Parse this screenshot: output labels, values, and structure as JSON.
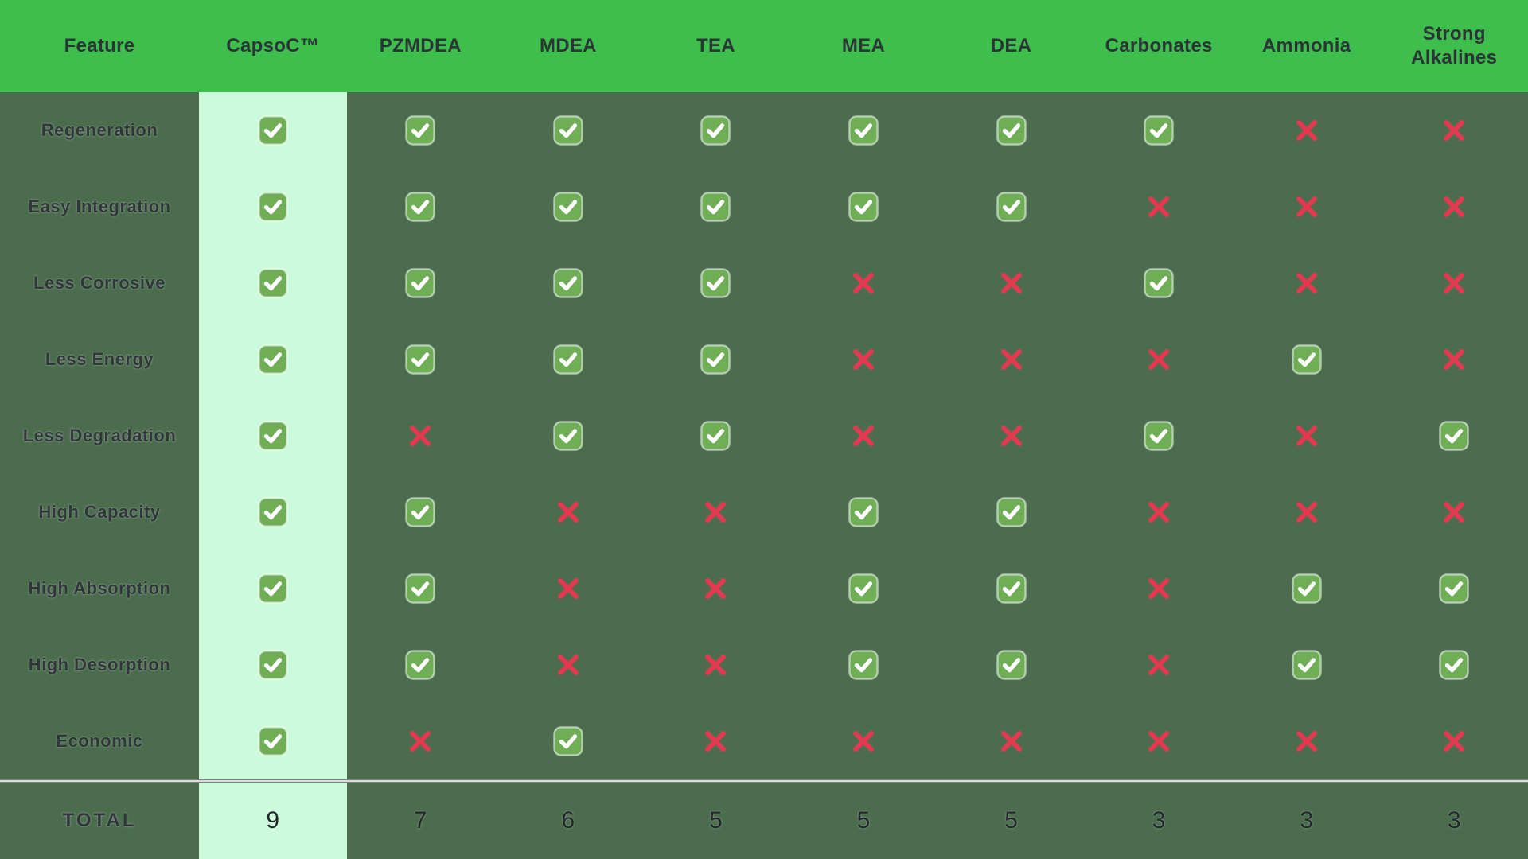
{
  "chart_data": {
    "type": "table",
    "feature_column_label": "Feature",
    "columns": [
      "CapsoC™",
      "PZMDEA",
      "MDEA",
      "TEA",
      "MEA",
      "DEA",
      "Carbonates",
      "Ammonia",
      "Strong Alkalines"
    ],
    "highlighted_column": "CapsoC™",
    "cell_symbols": {
      "true": "green check",
      "false": "red cross"
    },
    "rows": [
      {
        "feature": "Regeneration",
        "values": [
          true,
          true,
          true,
          true,
          true,
          true,
          true,
          false,
          false
        ]
      },
      {
        "feature": "Easy Integration",
        "values": [
          true,
          true,
          true,
          true,
          true,
          true,
          false,
          false,
          false
        ]
      },
      {
        "feature": "Less Corrosive",
        "values": [
          true,
          true,
          true,
          true,
          false,
          false,
          true,
          false,
          false
        ]
      },
      {
        "feature": "Less Energy",
        "values": [
          true,
          true,
          true,
          true,
          false,
          false,
          false,
          true,
          false
        ]
      },
      {
        "feature": "Less Degradation",
        "values": [
          true,
          false,
          true,
          true,
          false,
          false,
          true,
          false,
          true
        ]
      },
      {
        "feature": "High Capacity",
        "values": [
          true,
          true,
          false,
          false,
          true,
          true,
          false,
          false,
          false
        ]
      },
      {
        "feature": "High Absorption",
        "values": [
          true,
          true,
          false,
          false,
          true,
          true,
          false,
          true,
          true
        ]
      },
      {
        "feature": "High Desorption",
        "values": [
          true,
          true,
          false,
          false,
          true,
          true,
          false,
          true,
          true
        ]
      },
      {
        "feature": "Economic",
        "values": [
          true,
          false,
          true,
          false,
          false,
          false,
          false,
          false,
          false
        ]
      }
    ],
    "total_row": {
      "label": "TOTAL",
      "values": [
        9,
        7,
        6,
        5,
        5,
        5,
        3,
        3,
        3
      ]
    },
    "layout_hints": {
      "grid": "off",
      "header_position": "top",
      "totals_position": "bottom"
    }
  },
  "colors": {
    "header_green": "#3dbe4d",
    "body_green": "#4b6d4e",
    "mint": "#ccfbdb",
    "check_green": "#6fad57",
    "check_mark_white": "#ffffff",
    "cross_red": "#e23950",
    "heading_text": "#2d3438",
    "label_text": "#30363a",
    "total_text": "#22282b",
    "separator_gray": "#7f7f7f",
    "separator_light": "#dcdcdc"
  }
}
